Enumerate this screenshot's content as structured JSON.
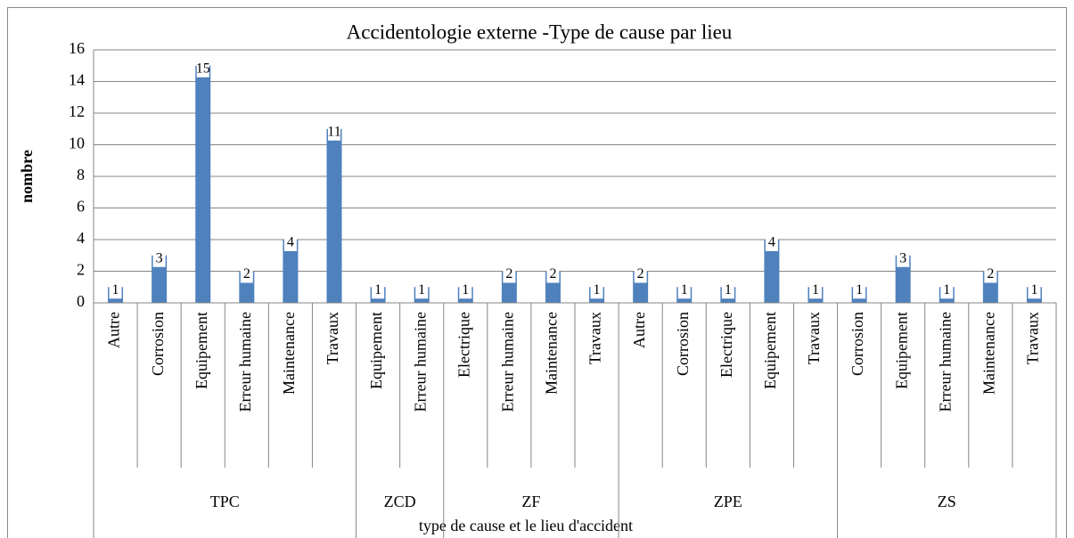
{
  "chart_data": {
    "type": "bar",
    "title": "Accidentologie externe -Type de cause par lieu",
    "x_label": "type de cause et le lieu  d'accident",
    "y_label": "nombre",
    "color": "#4f81bd",
    "groups": [
      {
        "name": "TPC",
        "categories": [
          "Autre",
          "Corrosion",
          "Equipement",
          "Erreur humaine",
          "Maintenance",
          "Travaux"
        ],
        "values": [
          1,
          3,
          15,
          2,
          4,
          11
        ]
      },
      {
        "name": "ZCD",
        "categories": [
          "Equipement",
          "Erreur humaine"
        ],
        "values": [
          1,
          1
        ]
      },
      {
        "name": "ZF",
        "categories": [
          "Electrique",
          "Erreur humaine",
          "Maintenance",
          "Travaux"
        ],
        "values": [
          1,
          2,
          2,
          1
        ]
      },
      {
        "name": "ZPE",
        "categories": [
          "Autre",
          "Corrosion",
          "Electrique",
          "Equipement",
          "Travaux"
        ],
        "values": [
          2,
          1,
          1,
          4,
          1
        ]
      },
      {
        "name": "ZS",
        "categories": [
          "Corrosion",
          "Equipement",
          "Erreur humaine",
          "Maintenance",
          "Travaux"
        ],
        "values": [
          1,
          3,
          1,
          2,
          1
        ]
      }
    ],
    "ylim": [
      0,
      16
    ],
    "yticks": [
      0,
      2,
      4,
      6,
      8,
      10,
      12,
      14,
      16
    ],
    "grid": true
  }
}
